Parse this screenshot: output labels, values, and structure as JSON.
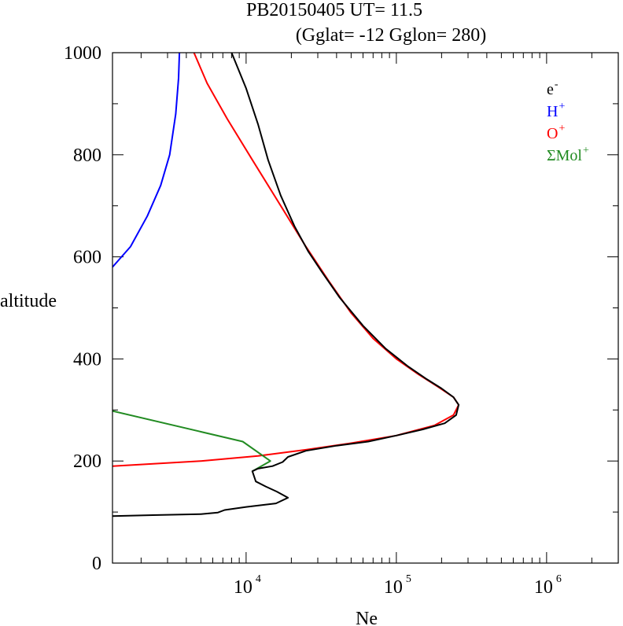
{
  "title": {
    "line1": "PB20150405   UT=  11.5",
    "line2": "(Gglat= -12   Gglon=  280)"
  },
  "chart_data": {
    "type": "line",
    "xlabel": "Ne",
    "ylabel": "altitude",
    "xscale": "log",
    "xlim": [
      1290,
      3000000
    ],
    "ylim": [
      0,
      1000
    ],
    "y_ticks": [
      0,
      200,
      400,
      600,
      800,
      1000
    ],
    "x_ticks": [
      {
        "value": 10000,
        "base": "10",
        "exp": "4"
      },
      {
        "value": 100000,
        "base": "10",
        "exp": "5"
      },
      {
        "value": 1000000,
        "base": "10",
        "exp": "6"
      }
    ],
    "legend_position": "top-right",
    "series": [
      {
        "name": "e",
        "sup": "-",
        "color": "#000000",
        "points": [
          [
            1290,
            92
          ],
          [
            2400,
            94
          ],
          [
            5000,
            96
          ],
          [
            6500,
            99
          ],
          [
            7200,
            104
          ],
          [
            10000,
            110
          ],
          [
            15800,
            117
          ],
          [
            19000,
            128
          ],
          [
            16000,
            140
          ],
          [
            13500,
            150
          ],
          [
            11600,
            160
          ],
          [
            11000,
            180
          ],
          [
            12000,
            185
          ],
          [
            15000,
            190
          ],
          [
            17500,
            198
          ],
          [
            19000,
            208
          ],
          [
            25000,
            220
          ],
          [
            40000,
            230
          ],
          [
            65000,
            238
          ],
          [
            100000,
            250
          ],
          [
            150000,
            262
          ],
          [
            210000,
            274
          ],
          [
            250000,
            290
          ],
          [
            260000,
            310
          ],
          [
            240000,
            325
          ],
          [
            200000,
            342
          ],
          [
            160000,
            360
          ],
          [
            120000,
            385
          ],
          [
            85000,
            420
          ],
          [
            60000,
            465
          ],
          [
            42000,
            520
          ],
          [
            32000,
            570
          ],
          [
            26000,
            610
          ],
          [
            21000,
            660
          ],
          [
            17000,
            720
          ],
          [
            14000,
            790
          ],
          [
            12000,
            860
          ],
          [
            10000,
            930
          ],
          [
            8000,
            1000
          ]
        ]
      },
      {
        "name": "H",
        "sup": "+",
        "color": "#0000ff",
        "points": [
          [
            1290,
            580
          ],
          [
            1700,
            620
          ],
          [
            2200,
            680
          ],
          [
            2700,
            740
          ],
          [
            3100,
            800
          ],
          [
            3400,
            880
          ],
          [
            3550,
            950
          ],
          [
            3600,
            1000
          ]
        ]
      },
      {
        "name": "O",
        "sup": "+",
        "color": "#ff0000",
        "points": [
          [
            1290,
            190
          ],
          [
            5000,
            200
          ],
          [
            12000,
            210
          ],
          [
            25000,
            222
          ],
          [
            50000,
            235
          ],
          [
            100000,
            250
          ],
          [
            180000,
            270
          ],
          [
            240000,
            290
          ],
          [
            260000,
            310
          ],
          [
            240000,
            325
          ],
          [
            190000,
            345
          ],
          [
            140000,
            370
          ],
          [
            100000,
            400
          ],
          [
            70000,
            440
          ],
          [
            50000,
            490
          ],
          [
            36000,
            550
          ],
          [
            25000,
            620
          ],
          [
            17000,
            700
          ],
          [
            11000,
            790
          ],
          [
            7500,
            870
          ],
          [
            5500,
            940
          ],
          [
            4500,
            1000
          ]
        ]
      },
      {
        "name": "ΣMol",
        "sup": "+",
        "color": "#228b22",
        "points": [
          [
            1290,
            298
          ],
          [
            9500,
            238
          ],
          [
            14500,
            200
          ],
          [
            11000,
            180
          ]
        ]
      }
    ]
  }
}
